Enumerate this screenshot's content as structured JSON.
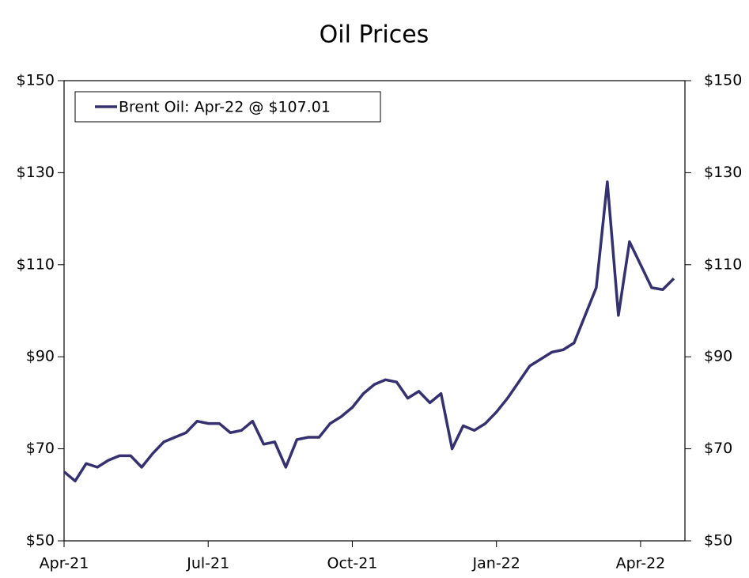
{
  "chart_data": {
    "type": "line",
    "title": "Oil Prices",
    "categories": [
      "Apr-21",
      null,
      null,
      null,
      null,
      null,
      null,
      null,
      null,
      null,
      null,
      null,
      null,
      "Jul-21",
      null,
      null,
      null,
      null,
      null,
      null,
      null,
      null,
      null,
      null,
      null,
      null,
      "Oct-21",
      null,
      null,
      null,
      null,
      null,
      null,
      null,
      null,
      null,
      null,
      null,
      null,
      "Jan-22",
      null,
      null,
      null,
      null,
      null,
      null,
      null,
      null,
      null,
      null,
      null,
      null,
      "Apr-22",
      null,
      null,
      null
    ],
    "series": [
      {
        "name": "Brent Oil: Apr-22 @ $107.01",
        "color": "#35306e",
        "values": [
          65,
          63,
          66.8,
          66,
          67.5,
          68.5,
          68.5,
          66,
          69,
          71.5,
          72.5,
          73.5,
          76,
          75.5,
          75.5,
          73.5,
          74,
          76,
          71,
          71.5,
          66,
          72,
          72.5,
          72.5,
          75.5,
          77,
          79,
          82,
          84,
          85,
          84.5,
          81,
          82.5,
          80,
          82,
          70,
          75,
          74,
          75.5,
          78,
          81,
          84.5,
          88,
          89.5,
          91,
          91.5,
          93,
          99,
          105,
          128,
          99,
          115,
          110,
          105,
          104.6,
          107.01
        ]
      }
    ],
    "xlim": [
      0,
      56
    ],
    "ylim": [
      50,
      150
    ],
    "yticks": [
      {
        "value": 50,
        "label": "$50"
      },
      {
        "value": 70,
        "label": "$70"
      },
      {
        "value": 90,
        "label": "$90"
      },
      {
        "value": 110,
        "label": "$110"
      },
      {
        "value": 130,
        "label": "$130"
      },
      {
        "value": 150,
        "label": "$150"
      }
    ],
    "y2lim": [
      50,
      150
    ],
    "y2ticks": [
      {
        "value": 50,
        "label": "$50"
      },
      {
        "value": 70,
        "label": "$70"
      },
      {
        "value": 90,
        "label": "$90"
      },
      {
        "value": 110,
        "label": "$110"
      },
      {
        "value": 130,
        "label": "$130"
      },
      {
        "value": 150,
        "label": "$150"
      }
    ],
    "legend": "upper left",
    "grid": false
  }
}
